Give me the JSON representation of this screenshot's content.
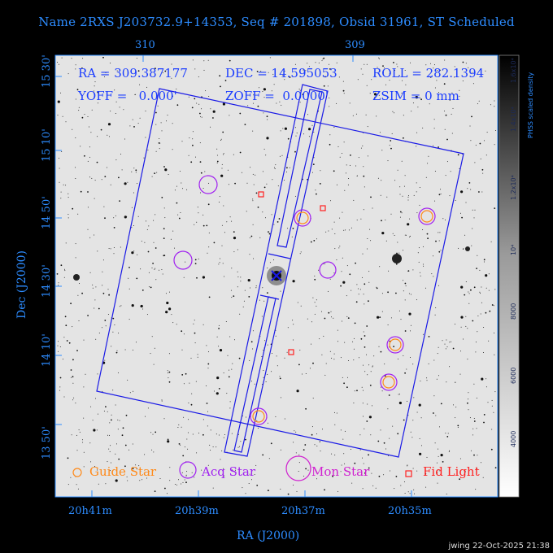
{
  "title": "Name 2RXS J203732.9+14353, Seq # 201898, Obsid 31961, ST Scheduled",
  "info": {
    "ra": "RA = 309.387177",
    "dec": "DEC = 14.595053",
    "roll": "ROLL = 282.1394",
    "yoff": "YOFF =   0.000'",
    "zoff": "ZOFF =  0.0000'",
    "zsim": "ZSIM = 0 mm"
  },
  "axes": {
    "xlabel": "RA (J2000)",
    "ylabel": "Dec (J2000)",
    "top_ticks": [
      "310",
      "309"
    ],
    "bottom_ticks": [
      "20h41m",
      "20h39m",
      "20h37m",
      "20h35m"
    ],
    "left_ticks": [
      "15 30'",
      "15 10'",
      "14 50'",
      "14 30'",
      "14 10'",
      "13 50'"
    ]
  },
  "colorbar": {
    "label": "PHSS scaled density",
    "ticks": [
      "1.6x10⁴",
      "1.4x10⁴",
      "1.2x10⁴",
      "10⁴",
      "8000",
      "6000",
      "4000"
    ]
  },
  "legend": {
    "guide": "Guide Star",
    "acq": "Acq Star",
    "mon": "Mon Star",
    "fid": "Fid Light"
  },
  "colors": {
    "title": "#2d8cff",
    "guide": "#ff8a1a",
    "acq": "#a020f0",
    "mon": "#d020d0",
    "fid": "#ff2020",
    "detector": "#1a1ae6"
  },
  "footer": "jwing 22-Oct-2025 21:38"
}
